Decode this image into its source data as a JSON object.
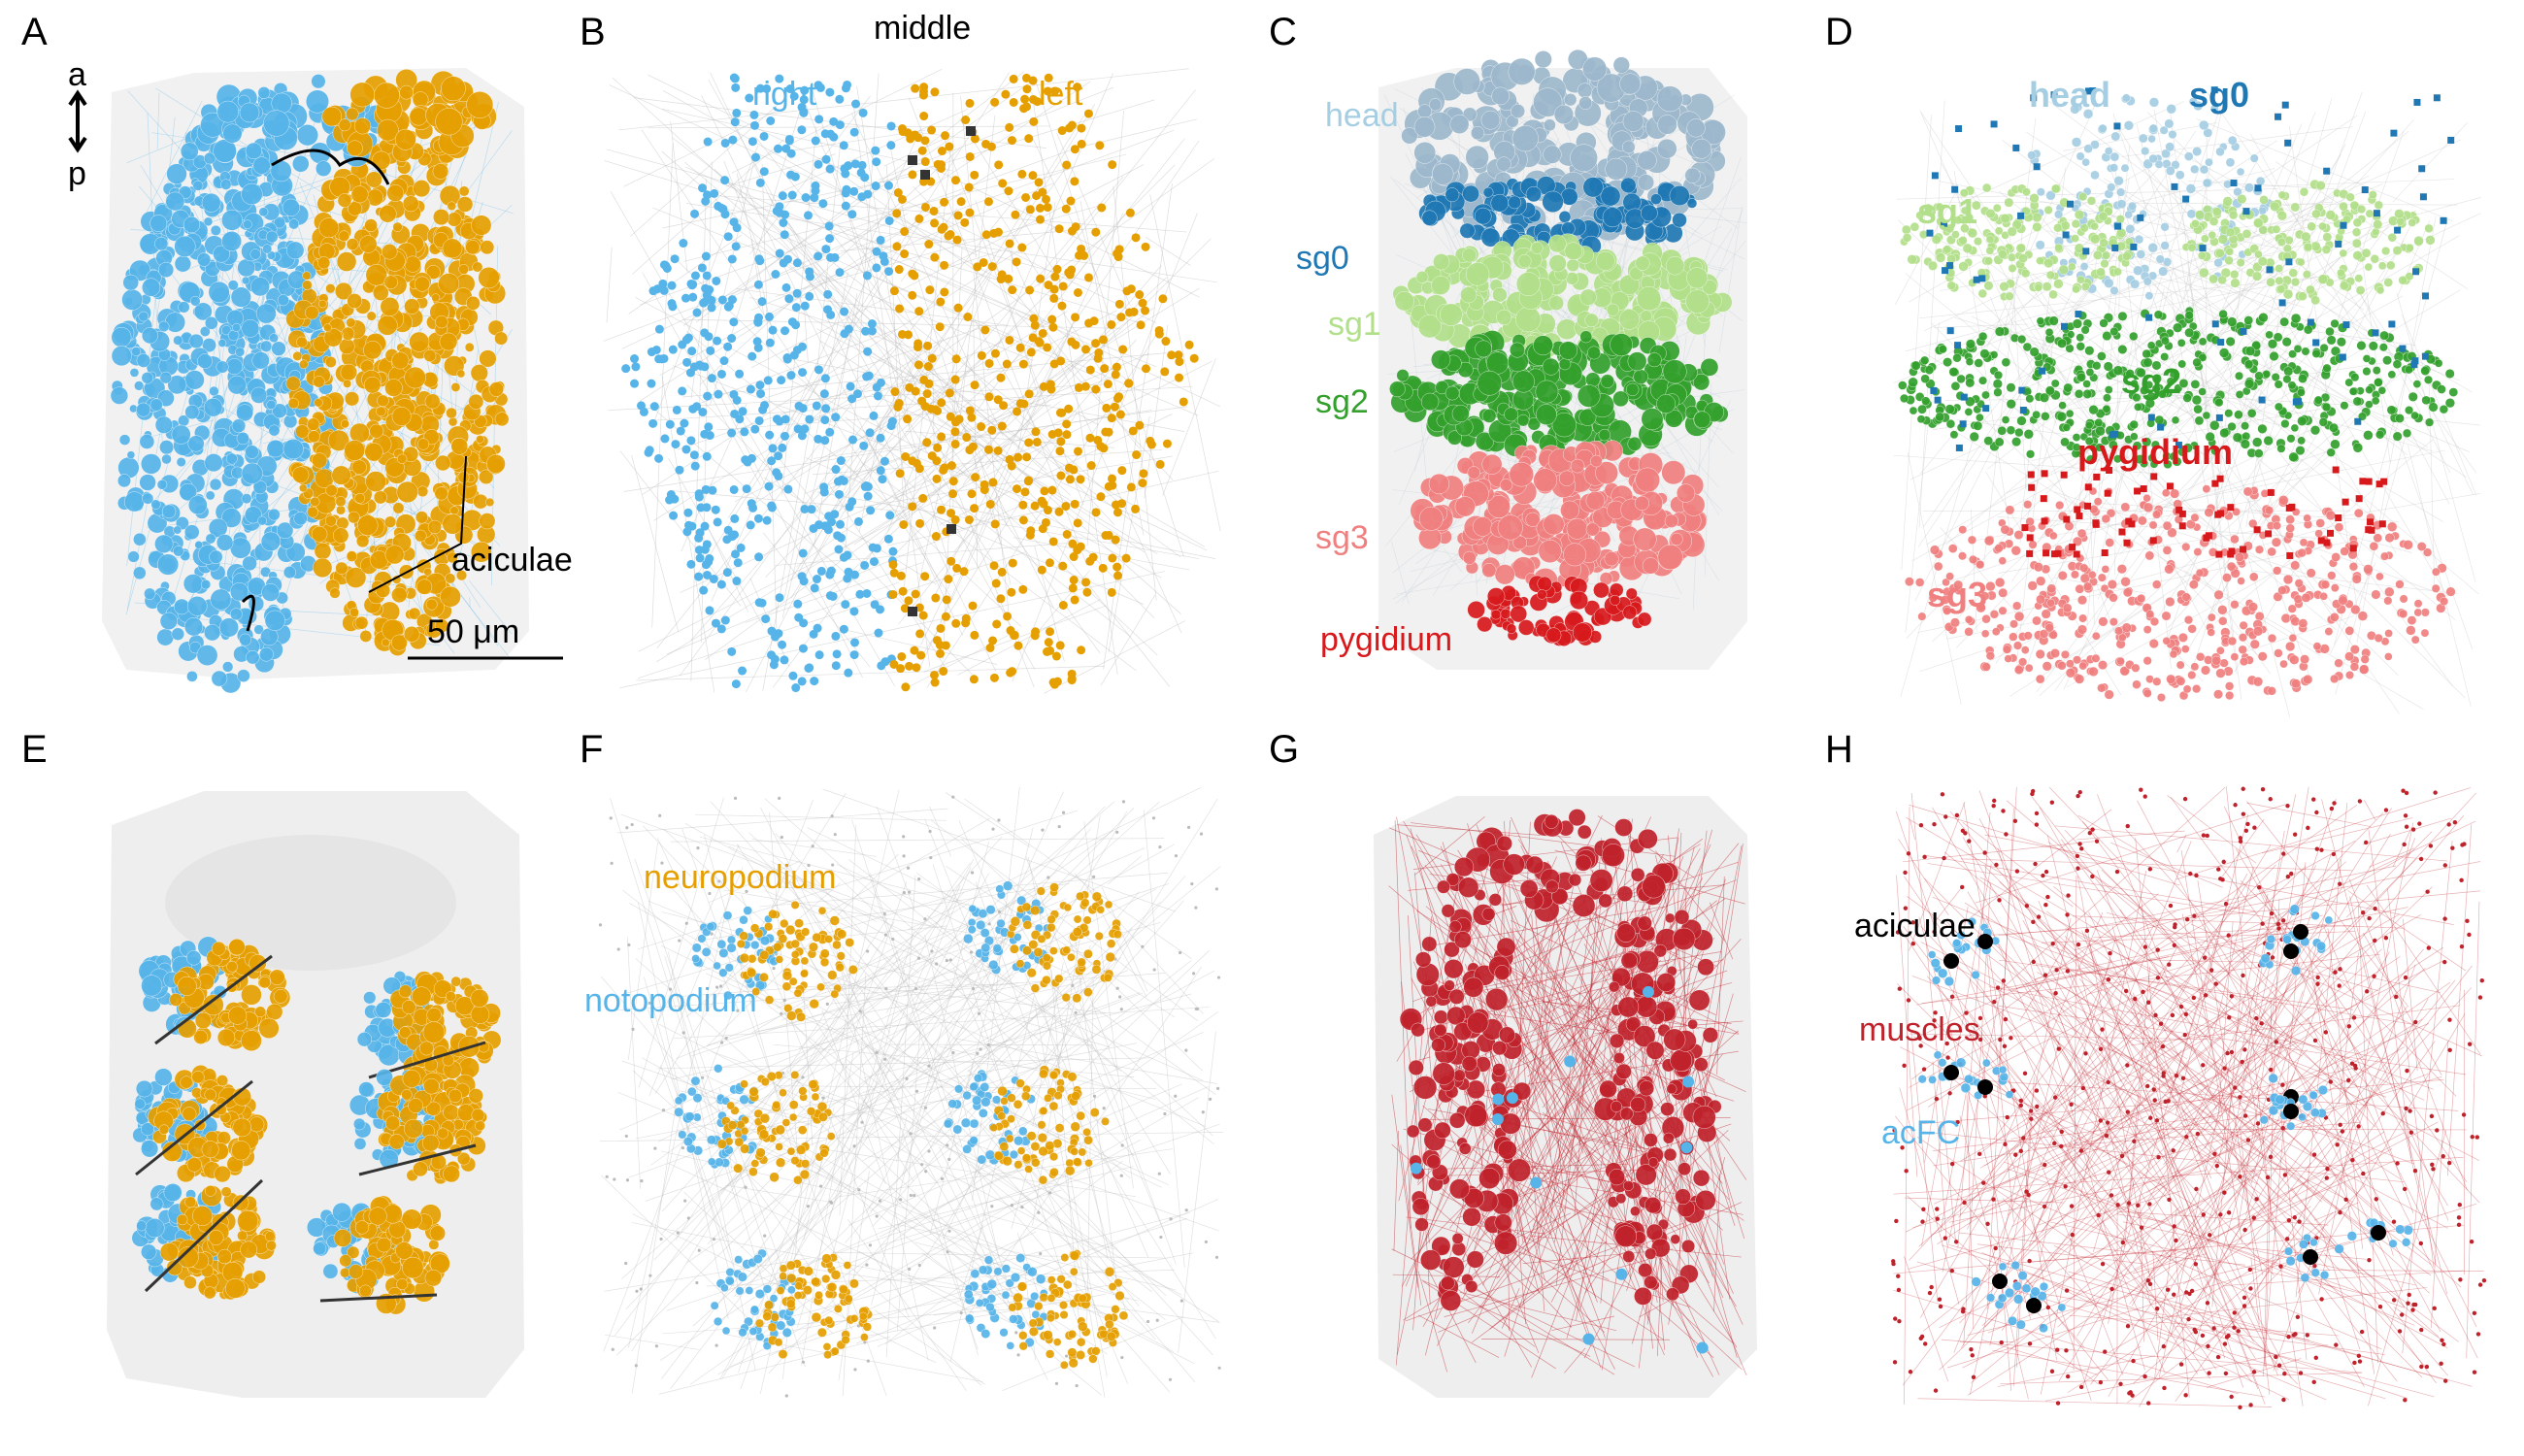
{
  "panels": [
    {
      "letter": "A",
      "labels": {
        "axis_a": "a",
        "axis_p": "p",
        "aciculae": "aciculae",
        "scale": "50 μm"
      }
    },
    {
      "letter": "B",
      "labels": {
        "middle": "middle",
        "right": "right",
        "left": "left"
      }
    },
    {
      "letter": "C",
      "labels": {
        "head": "head",
        "sg0": "sg0",
        "sg1": "sg1",
        "sg2": "sg2",
        "sg3": "sg3",
        "pygidium": "pygidium"
      }
    },
    {
      "letter": "D",
      "labels": {
        "head": "head",
        "sg0": "sg0",
        "sg1": "sg1",
        "sg2": "sg2",
        "pygidium": "pygidium",
        "sg3": "sg3"
      }
    },
    {
      "letter": "E",
      "labels": {}
    },
    {
      "letter": "F",
      "labels": {
        "neuropodium": "neuropodium",
        "notopodium": "notopodium"
      }
    },
    {
      "letter": "G",
      "labels": {}
    },
    {
      "letter": "H",
      "labels": {
        "aciculae": "aciculae",
        "muscles": "muscles",
        "acfc": "acFC"
      }
    }
  ],
  "colors": {
    "right_blue": "#56B4E9",
    "left_orange": "#E69F00",
    "head": "#A6CEE3",
    "sg0": "#1F78B4",
    "sg1": "#B2DF8A",
    "sg2": "#33A02C",
    "sg3": "#F08080",
    "pygidium": "#D7191C",
    "muscle_red": "#C0222B",
    "black": "#000000",
    "body_gray": "#E8E8E8"
  }
}
